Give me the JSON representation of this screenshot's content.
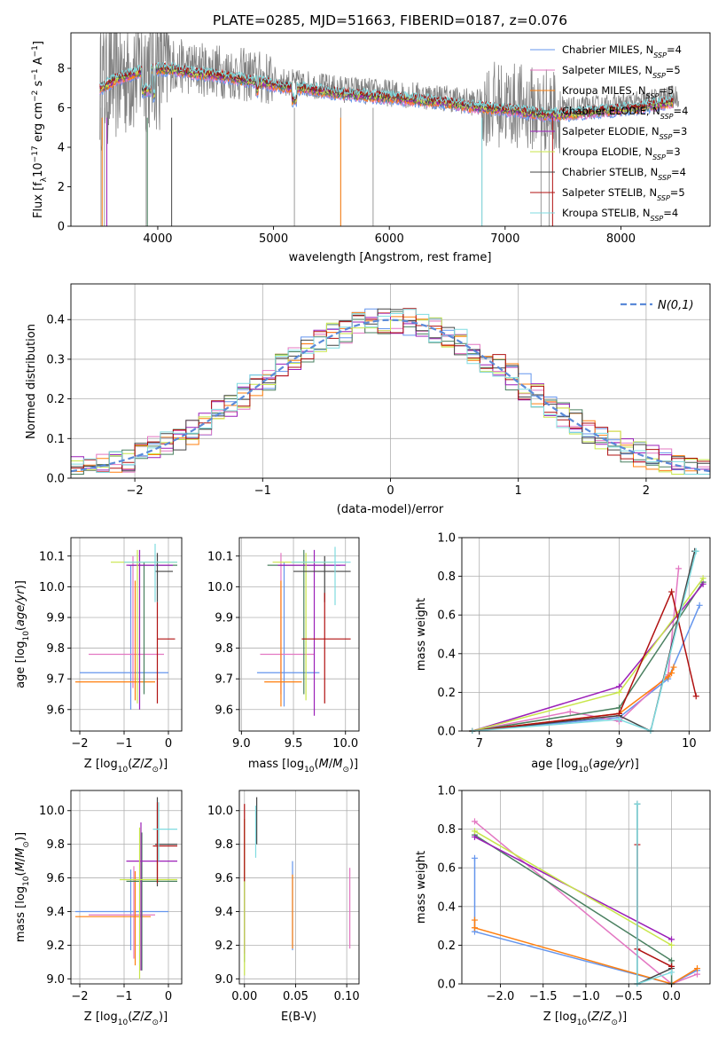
{
  "chart_data": [
    {
      "type": "line",
      "title": "PLATE=0285, MJD=51663, FIBERID=0187, z=0.076",
      "xlabel": "wavelength [Angstrom, rest frame]",
      "ylabel": "Flux [f_λ 10^-17 erg cm^-2 s^-1 A^-1]",
      "xlim": [
        3250,
        8770
      ],
      "ylim": [
        0,
        9.8
      ],
      "xticks": [
        4000,
        5000,
        6000,
        7000,
        8000
      ],
      "yticks": [
        0,
        2,
        4,
        6,
        8
      ],
      "legend_position": "top-right",
      "continuum": {
        "x": [
          3500,
          3650,
          3800,
          3950,
          4100,
          4300,
          4500,
          4700,
          4900,
          5100,
          5300,
          5500,
          5700,
          5900,
          6100,
          6300,
          6500,
          6700,
          6900,
          7100,
          7300,
          7500,
          7700,
          7900,
          8100,
          8300,
          8500
        ],
        "y": [
          7.2,
          7.7,
          8.0,
          8.2,
          8.2,
          8.0,
          7.9,
          7.7,
          7.5,
          7.3,
          7.2,
          7.0,
          6.9,
          6.8,
          6.7,
          6.6,
          6.5,
          6.3,
          6.2,
          6.1,
          5.9,
          5.9,
          6.0,
          6.1,
          6.2,
          6.4,
          6.6
        ]
      },
      "series": [
        {
          "name": "Chabrier MILES, N_SSP=4",
          "color": "#6495ed"
        },
        {
          "name": "Salpeter MILES, N_SSP=5",
          "color": "#e377c2"
        },
        {
          "name": "Kroupa MILES, N_SSP=5",
          "color": "#ff7f0e"
        },
        {
          "name": "Chabrier ELODIE, N_SSP=4",
          "color": "#4a8060"
        },
        {
          "name": "Salpeter ELODIE, N_SSP=3",
          "color": "#9b1fb8"
        },
        {
          "name": "Kroupa ELODIE, N_SSP=3",
          "color": "#c8e64a"
        },
        {
          "name": "Chabrier STELIB, N_SSP=4",
          "color": "#444444"
        },
        {
          "name": "Salpeter STELIB, N_SSP=5",
          "color": "#b01010"
        },
        {
          "name": "Kroupa STELIB, N_SSP=4",
          "color": "#7fdbe0"
        }
      ]
    },
    {
      "type": "bar",
      "xlabel": "(data-model)/error",
      "ylabel": "Normed distribution",
      "xlim": [
        -2.5,
        2.5
      ],
      "ylim": [
        0,
        0.49
      ],
      "xticks": [
        -2,
        -1,
        0,
        1,
        2
      ],
      "yticks": [
        0.0,
        0.1,
        0.2,
        0.3,
        0.4
      ],
      "legend": "N(0,1)",
      "legend_position": "top-right",
      "bin_width": 0.1,
      "bin_start": -2.6,
      "reference": {
        "mean": 0,
        "sigma": 1
      }
    },
    {
      "type": "scatter",
      "xlabel": "Z [log10(Z/Z⊙)]",
      "ylabel": "age [log10(age/yr)]",
      "xlim": [
        -2.2,
        0.3
      ],
      "ylim": [
        9.53,
        10.16
      ],
      "xticks": [
        -2,
        -1,
        0
      ],
      "yticks": [
        9.6,
        9.7,
        9.8,
        9.9,
        10.0,
        10.1
      ]
    },
    {
      "type": "scatter",
      "xlabel": "mass [log10(M/M⊙)]",
      "xlim": [
        8.98,
        10.13
      ],
      "ylim": [
        9.53,
        10.16
      ],
      "xticks": [
        9.0,
        9.5,
        10.0
      ],
      "yticks": [
        9.6,
        9.7,
        9.8,
        9.9,
        10.0,
        10.1
      ]
    },
    {
      "type": "line",
      "xlabel": "age [log10(age/yr)]",
      "ylabel": "mass weight",
      "xlim": [
        6.75,
        10.3
      ],
      "ylim": [
        0,
        1.0
      ],
      "xticks": [
        7,
        8,
        9,
        10
      ],
      "yticks": [
        0.0,
        0.2,
        0.4,
        0.6,
        0.8,
        1.0
      ],
      "series": [
        {
          "color": "#6495ed",
          "x": [
            6.9,
            9.0,
            9.7,
            10.15
          ],
          "y": [
            0.0,
            0.07,
            0.27,
            0.65
          ]
        },
        {
          "color": "#e377c2",
          "x": [
            6.9,
            8.3,
            9.0,
            9.7,
            9.85
          ],
          "y": [
            0.0,
            0.1,
            0.05,
            0.29,
            0.84
          ]
        },
        {
          "color": "#ff7f0e",
          "x": [
            6.9,
            9.0,
            9.7,
            9.75,
            9.78
          ],
          "y": [
            0.0,
            0.09,
            0.28,
            0.3,
            0.33
          ]
        },
        {
          "color": "#4a8060",
          "x": [
            6.9,
            9.0,
            10.2
          ],
          "y": [
            0.0,
            0.12,
            0.77
          ]
        },
        {
          "color": "#9b1fb8",
          "x": [
            6.9,
            9.0,
            10.2
          ],
          "y": [
            0.0,
            0.23,
            0.76
          ]
        },
        {
          "color": "#c8e64a",
          "x": [
            6.9,
            9.0,
            10.2
          ],
          "y": [
            0.0,
            0.2,
            0.79
          ]
        },
        {
          "color": "#444444",
          "x": [
            6.9,
            9.0,
            9.45,
            10.08
          ],
          "y": [
            0.0,
            0.08,
            0.0,
            0.93
          ]
        },
        {
          "color": "#b01010",
          "x": [
            6.9,
            9.0,
            9.75,
            10.1
          ],
          "y": [
            0.0,
            0.09,
            0.72,
            0.18
          ]
        },
        {
          "color": "#7fdbe0",
          "x": [
            6.9,
            9.0,
            9.45,
            10.1
          ],
          "y": [
            0.0,
            0.06,
            0.0,
            0.93
          ]
        }
      ]
    },
    {
      "type": "scatter",
      "xlabel": "Z [log10(Z/Z⊙)]",
      "ylabel": "mass [log10(M/M⊙)]",
      "xlim": [
        -2.2,
        0.3
      ],
      "ylim": [
        8.97,
        10.12
      ],
      "xticks": [
        -2,
        -1,
        0
      ],
      "yticks": [
        9.0,
        9.2,
        9.4,
        9.6,
        9.8,
        10.0
      ]
    },
    {
      "type": "scatter",
      "xlabel": "E(B-V)",
      "xlim": [
        -0.005,
        0.112
      ],
      "ylim": [
        8.97,
        10.12
      ],
      "xticks": [
        0.0,
        0.05,
        0.1
      ],
      "xtick_labels": [
        "0.00",
        "0.05",
        "0.10"
      ],
      "yticks": [
        9.0,
        9.2,
        9.4,
        9.6,
        9.8,
        10.0
      ]
    },
    {
      "type": "line",
      "xlabel": "Z [log10(Z/Z⊙)]",
      "ylabel": "mass weight",
      "xlim": [
        -2.45,
        0.45
      ],
      "ylim": [
        0,
        1.0
      ],
      "xticks": [
        -2.0,
        -1.5,
        -1.0,
        -0.5,
        0.0
      ],
      "yticks": [
        0.0,
        0.2,
        0.4,
        0.6,
        0.8,
        1.0
      ],
      "series": [
        {
          "color": "#6495ed",
          "x": [
            -2.3,
            -2.3,
            0.0,
            0.3
          ],
          "y": [
            0.65,
            0.27,
            0.0,
            0.07
          ]
        },
        {
          "color": "#e377c2",
          "x": [
            -2.3,
            0.0,
            0.3
          ],
          "y": [
            0.84,
            0.0,
            0.05
          ]
        },
        {
          "color": "#ff7f0e",
          "x": [
            -2.3,
            -2.3,
            0.0,
            0.3
          ],
          "y": [
            0.33,
            0.29,
            0.0,
            0.08
          ]
        },
        {
          "color": "#4a8060",
          "x": [
            -2.3,
            0.0,
            0.0
          ],
          "y": [
            0.77,
            0.12,
            0.0
          ]
        },
        {
          "color": "#9b1fb8",
          "x": [
            -2.3,
            0.0
          ],
          "y": [
            0.76,
            0.23
          ]
        },
        {
          "color": "#c8e64a",
          "x": [
            -2.3,
            0.0
          ],
          "y": [
            0.79,
            0.2
          ]
        },
        {
          "color": "#444444",
          "x": [
            -0.4,
            -0.4,
            0.0
          ],
          "y": [
            0.93,
            0.0,
            0.08
          ]
        },
        {
          "color": "#b01010",
          "x": [
            -0.4,
            -0.4,
            0.0
          ],
          "y": [
            0.72,
            0.18,
            0.09
          ]
        },
        {
          "color": "#7fdbe0",
          "x": [
            -0.4,
            -0.4,
            0.0
          ],
          "y": [
            0.93,
            0.0,
            0.06
          ]
        }
      ]
    }
  ]
}
